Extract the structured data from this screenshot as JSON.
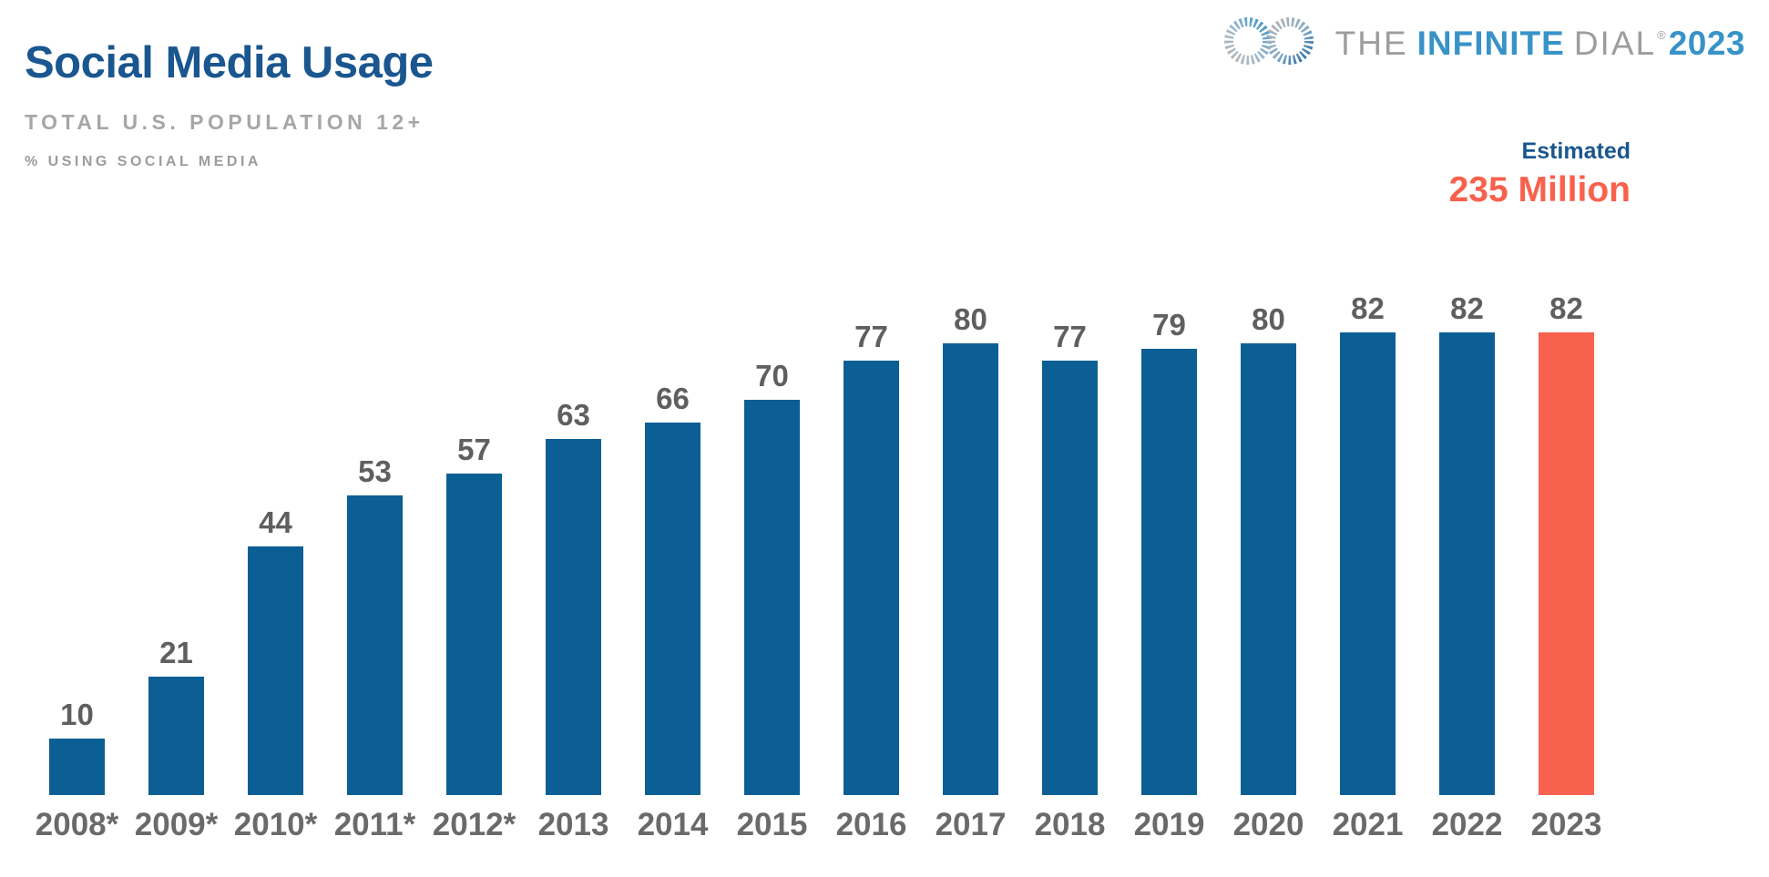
{
  "header": {
    "title": "Social Media Usage",
    "subtitle": "TOTAL U.S. POPULATION 12+",
    "metric_label": "% USING SOCIAL MEDIA"
  },
  "brand": {
    "the": "THE",
    "infinite": "INFINITE",
    "dial": "DIAL",
    "reg": "®",
    "year": "2023",
    "icon": "infinity-equalizer-icon"
  },
  "estimate": {
    "label": "Estimated",
    "value": "235 Million"
  },
  "colors": {
    "bar_blue": "#0c5f94",
    "coral": "#f8614d",
    "title_navy": "#1a568f",
    "logo_blue": "#3793c8",
    "logo_gray": "#9d9d9d",
    "icon_gray": "#b5b5b5"
  },
  "chart_data": {
    "type": "bar",
    "title": "Social Media Usage",
    "subtitle": "TOTAL U.S. POPULATION 12+",
    "ylabel": "% USING SOCIAL MEDIA",
    "xlabel": "",
    "categories": [
      "2008*",
      "2009*",
      "2010*",
      "2011*",
      "2012*",
      "2013",
      "2014",
      "2015",
      "2016",
      "2017",
      "2018",
      "2019",
      "2020",
      "2021",
      "2022",
      "2023"
    ],
    "values": [
      10,
      21,
      44,
      53,
      57,
      63,
      66,
      70,
      77,
      80,
      77,
      79,
      80,
      82,
      82,
      82
    ],
    "ylim": [
      0,
      100
    ],
    "grid": false,
    "legend": false,
    "highlight_category": "2023",
    "highlight_note": "Estimated 235 Million"
  }
}
